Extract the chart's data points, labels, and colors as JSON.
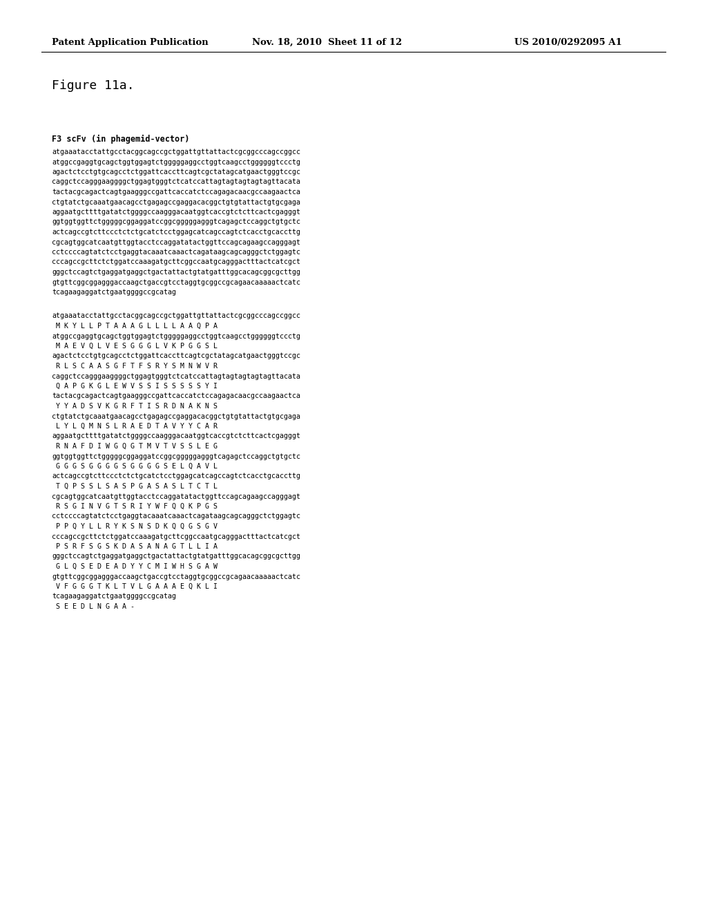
{
  "header_left": "Patent Application Publication",
  "header_middle": "Nov. 18, 2010  Sheet 11 of 12",
  "header_right": "US 2010/0292095 A1",
  "figure_label": "Figure 11a.",
  "section_title": "F3 scFv (in phagemid-vector)",
  "dna_lines": [
    "atgaaatacctattgcctacggcagccgctggattgttattactcgcggcccagccggcc",
    "atggccgaggtgcagctggtggagtctgggggaggcctggtcaagcctggggggtccctg",
    "agactctcctgtgcagcctctggattcaccttcagtcgctatagcatgaactgggtccgc",
    "caggctccagggaaggggctggagtgggtctcatccattagtagtagtagtagttacata",
    "tactacgcagactcagtgaagggccgattcaccatctccagagacaacgccaagaactca",
    "ctgtatctgcaaatgaacagcctgagagccgaggacacggctgtgtattactgtgcgaga",
    "aggaatgcttttgatatctggggccaagggacaatggtcaccgtctcttcactcgagggt",
    "ggtggtggttctgggggcggaggatccggcgggggagggtcagagctccaggctgtgctc",
    "actcagccgtcttccctctctgcatctcctggagcatcagccagtctcacctgcaccttg",
    "cgcagtggcatcaatgttggtacctccaggatatactggttccagcagaagccagggagt",
    "cctccccagtatctcctgaggtacaaatcaaactcagataagcagcagggctctggagtc",
    "cccagccgcttctctggatccaaagatgcttcggccaatgcagggactttactcatcgct",
    "gggctccagtctgaggatgaggctgactattactgtatgatttggcacagcggcgcttgg",
    "gtgttcggcggagggaccaagctgaccgtcctaggtgcggccgcagaacaaaaactcatc",
    "tcagaagaggatctgaatggggccgcatag"
  ],
  "paired_lines": [
    [
      "atgaaatacctattgcctacggcagccgctggattgttattactcgcggcccagccggcc",
      " M K Y L L P T A A A G L L L L A A Q P A"
    ],
    [
      "atggccgaggtgcagctggtggagtctgggggaggcctggtcaagcctggggggtccctg",
      " M A E V Q L V E S G G G L V K P G G S L"
    ],
    [
      "agactctcctgtgcagcctctggattcaccttcagtcgctatagcatgaactgggtccgc",
      " R L S C A A S G F T F S R Y S M N W V R"
    ],
    [
      "caggctccagggaaggggctggagtgggtctcatccattagtagtagtagtagttacata",
      " Q A P G K G L E W V S S I S S S S S Y I"
    ],
    [
      "tactacgcagactcagtgaagggccgattcaccatctccagagacaacgccaagaactca",
      " Y Y A D S V K G R F T I S R D N A K N S"
    ],
    [
      "ctgtatctgcaaatgaacagcctgagagccgaggacacggctgtgtattactgtgcgaga",
      " L Y L Q M N S L R A E D T A V Y Y C A R"
    ],
    [
      "aggaatgcttttgatatctggggccaagggacaatggtcaccgtctcttcactcgagggt",
      " R N A F D I W G Q G T M V T V S S L E G"
    ],
    [
      "ggtggtggttctgggggcggaggatccggcgggggagggtcagagctccaggctgtgctc",
      " G G G S G G G G S G G G G S E L Q A V L"
    ],
    [
      "actcagccgtcttccctctctgcatctcctggagcatcagccagtctcacctgcaccttg",
      " T Q P S S L S A S P G A S A S L T C T L"
    ],
    [
      "cgcagtggcatcaatgttggtacctccaggatatactggttccagcagaagccagggagt",
      " R S G I N V G T S R I Y W F Q Q K P G S"
    ],
    [
      "cctccccagtatctcctgaggtacaaatcaaactcagataagcagcagggctctggagtc",
      " P P Q Y L L R Y K S N S D K Q Q G S G V"
    ],
    [
      "cccagccgcttctctggatccaaagatgcttcggccaatgcagggactttactcatcgct",
      " P S R F S G S K D A S A N A G T L L I A"
    ],
    [
      "gggctccagtctgaggatgaggctgactattactgtatgatttggcacagcggcgcttgg",
      " G L Q S E D E A D Y Y C M I W H S G A W"
    ],
    [
      "gtgttcggcggagggaccaagctgaccgtcctaggtgcggccgcagaacaaaaactcatc",
      " V F G G G T K L T V L G A A A E Q K L I"
    ],
    [
      "tcagaagaggatctgaatggggccgcatag",
      " S E E D L N G A A -"
    ]
  ],
  "bg_color": "#ffffff",
  "text_color": "#000000",
  "header_fontsize": 9.5,
  "figure_label_fontsize": 13,
  "section_title_fontsize": 8.5,
  "dna_fontsize": 7.2,
  "aa_fontsize": 7.2,
  "page_width": 10.24,
  "page_height": 13.2,
  "dpi": 100
}
